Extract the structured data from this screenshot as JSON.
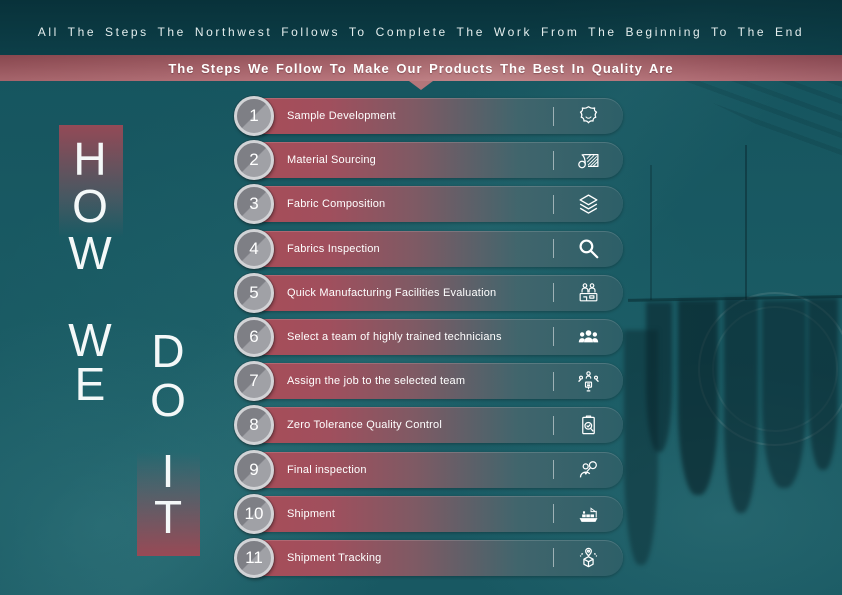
{
  "header": {
    "title": "All The Steps The Northwest Follows To Complete The Work From The Beginning To The End"
  },
  "banner": {
    "title": "The Steps We Follow To Make Our Products The Best In Quality Are"
  },
  "side_text": {
    "word_how": "HOW",
    "word_we": "WE",
    "word_do": "DO",
    "word_it": "IT"
  },
  "steps": [
    {
      "number": "1",
      "label": "Sample Development",
      "icon": "leather-hide-icon"
    },
    {
      "number": "2",
      "label": "Material Sourcing",
      "icon": "fabric-roll-icon"
    },
    {
      "number": "3",
      "label": "Fabric Composition",
      "icon": "fabric-layers-icon"
    },
    {
      "number": "4",
      "label": "Fabrics Inspection",
      "icon": "magnifier-icon"
    },
    {
      "number": "5",
      "label": "Quick Manufacturing Facilities Evaluation",
      "icon": "facility-evaluation-icon"
    },
    {
      "number": "6",
      "label": "Select a team of highly trained technicians",
      "icon": "team-icon"
    },
    {
      "number": "7",
      "label": "Assign the job to the selected team",
      "icon": "assign-team-icon"
    },
    {
      "number": "8",
      "label": "Zero Tolerance Quality Control",
      "icon": "quality-control-icon"
    },
    {
      "number": "9",
      "label": "Final inspection",
      "icon": "person-magnifier-icon"
    },
    {
      "number": "10",
      "label": "Shipment",
      "icon": "cargo-ship-icon"
    },
    {
      "number": "11",
      "label": "Shipment Tracking",
      "icon": "package-tracking-icon"
    }
  ],
  "colors": {
    "background_teal": "#1a5a63",
    "header_teal": "#0d434d",
    "accent_maroon": "#a84d58",
    "banner_maroon": "#ad656d",
    "circle_gray": "#8d8e93",
    "text_white": "#ffffff"
  }
}
